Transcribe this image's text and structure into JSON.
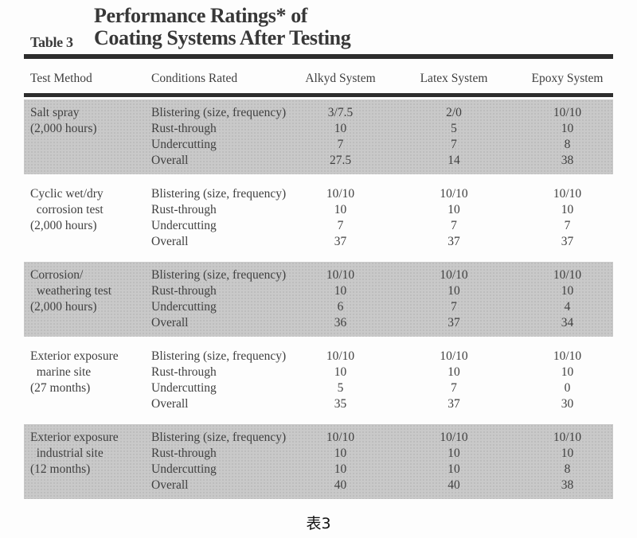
{
  "page": {
    "table_label": "Table 3",
    "title_line1": "Performance Ratings* of",
    "title_line2": "Coating Systems After Testing",
    "caption": "表3"
  },
  "header": {
    "col_test_method": "Test Method",
    "col_conditions": "Conditions Rated",
    "col_alkyd": "Alkyd System",
    "col_latex": "Latex System",
    "col_epoxy": "Epoxy System"
  },
  "colors": {
    "band_gray": "#c9c9c9",
    "rule_dark": "#2d2d2d",
    "text": "#3f3f3f"
  },
  "blocks": [
    {
      "method_lines": [
        "Salt spray",
        "(2,000 hours)"
      ],
      "shaded": true,
      "rows": [
        {
          "condition": "Blistering (size, frequency)",
          "alkyd": "3/7.5",
          "latex": "2/0",
          "epoxy": "10/10"
        },
        {
          "condition": "Rust-through",
          "alkyd": "10",
          "latex": "5",
          "epoxy": "10"
        },
        {
          "condition": "Undercutting",
          "alkyd": "7",
          "latex": "7",
          "epoxy": "8"
        },
        {
          "condition": "Overall",
          "alkyd": "27.5",
          "latex": "14",
          "epoxy": "38"
        }
      ]
    },
    {
      "method_lines": [
        "Cyclic wet/dry",
        "  corrosion test",
        "(2,000 hours)"
      ],
      "shaded": false,
      "rows": [
        {
          "condition": "Blistering (size, frequency)",
          "alkyd": "10/10",
          "latex": "10/10",
          "epoxy": "10/10"
        },
        {
          "condition": "Rust-through",
          "alkyd": "10",
          "latex": "10",
          "epoxy": "10"
        },
        {
          "condition": "Undercutting",
          "alkyd": "7",
          "latex": "7",
          "epoxy": "7"
        },
        {
          "condition": "Overall",
          "alkyd": "37",
          "latex": "37",
          "epoxy": "37"
        }
      ]
    },
    {
      "method_lines": [
        "Corrosion/",
        "  weathering test",
        "(2,000 hours)"
      ],
      "shaded": true,
      "rows": [
        {
          "condition": "Blistering (size, frequency)",
          "alkyd": "10/10",
          "latex": "10/10",
          "epoxy": "10/10"
        },
        {
          "condition": "Rust-through",
          "alkyd": "10",
          "latex": "10",
          "epoxy": "10"
        },
        {
          "condition": "Undercutting",
          "alkyd": "6",
          "latex": "7",
          "epoxy": "4"
        },
        {
          "condition": "Overall",
          "alkyd": "36",
          "latex": "37",
          "epoxy": "34"
        }
      ]
    },
    {
      "method_lines": [
        "Exterior exposure",
        "  marine site",
        "(27 months)"
      ],
      "shaded": false,
      "rows": [
        {
          "condition": "Blistering (size, frequency)",
          "alkyd": "10/10",
          "latex": "10/10",
          "epoxy": "10/10"
        },
        {
          "condition": "Rust-through",
          "alkyd": "10",
          "latex": "10",
          "epoxy": "10"
        },
        {
          "condition": "Undercutting",
          "alkyd": "5",
          "latex": "7",
          "epoxy": "0"
        },
        {
          "condition": "Overall",
          "alkyd": "35",
          "latex": "37",
          "epoxy": "30"
        }
      ]
    },
    {
      "method_lines": [
        "Exterior exposure",
        "  industrial site",
        "(12 months)"
      ],
      "shaded": true,
      "rows": [
        {
          "condition": "Blistering (size, frequency)",
          "alkyd": "10/10",
          "latex": "10/10",
          "epoxy": "10/10"
        },
        {
          "condition": "Rust-through",
          "alkyd": "10",
          "latex": "10",
          "epoxy": "10"
        },
        {
          "condition": "Undercutting",
          "alkyd": "10",
          "latex": "10",
          "epoxy": "8"
        },
        {
          "condition": "Overall",
          "alkyd": "40",
          "latex": "40",
          "epoxy": "38"
        }
      ]
    }
  ]
}
